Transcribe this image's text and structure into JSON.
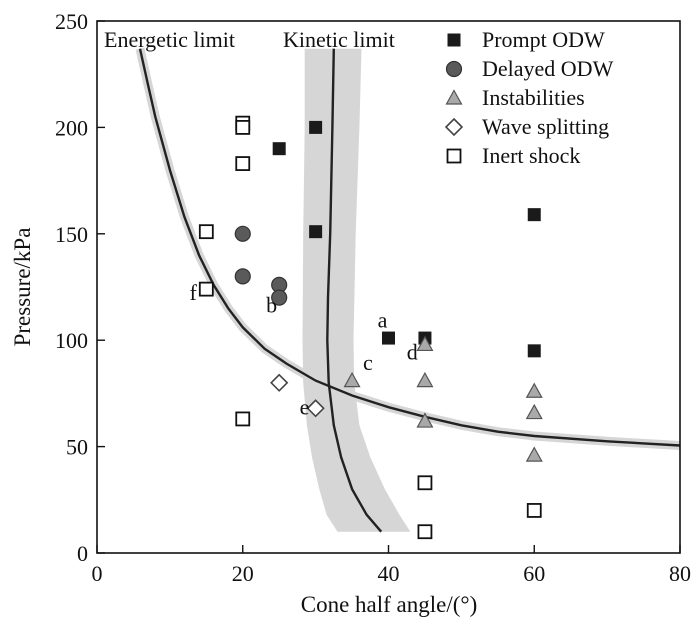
{
  "chart_data": {
    "type": "scatter",
    "xlabel": "Cone half angle/(°)",
    "ylabel": "Pressure/kPa",
    "xlim": [
      0,
      80
    ],
    "ylim": [
      0,
      250
    ],
    "xticks": [
      0,
      20,
      40,
      60,
      80
    ],
    "yticks": [
      0,
      50,
      100,
      150,
      200,
      250
    ],
    "legend_position": "top-right",
    "colors": {
      "dark_marker": "#1a1a1a",
      "delayed_marker": "#5a5a5a",
      "instability_marker": "#a9a9a9",
      "band": "#d6d6d6",
      "curve": "#222222"
    },
    "series": [
      {
        "name": "Prompt ODW",
        "marker": "square-filled",
        "points": [
          [
            25,
            190
          ],
          [
            30,
            200
          ],
          [
            30,
            151
          ],
          [
            40,
            101
          ],
          [
            45,
            101
          ],
          [
            60,
            159
          ],
          [
            60,
            95
          ]
        ]
      },
      {
        "name": "Delayed ODW",
        "marker": "circle-filled",
        "points": [
          [
            20,
            150
          ],
          [
            20,
            130
          ],
          [
            25,
            126
          ],
          [
            25,
            120
          ]
        ]
      },
      {
        "name": "Instabilities",
        "marker": "triangle-gray",
        "points": [
          [
            35,
            81
          ],
          [
            45,
            98
          ],
          [
            45,
            81
          ],
          [
            45,
            62
          ],
          [
            60,
            76
          ],
          [
            60,
            66
          ],
          [
            60,
            46
          ]
        ]
      },
      {
        "name": "Wave splitting",
        "marker": "diamond-open",
        "points": [
          [
            25,
            80
          ],
          [
            30,
            68
          ]
        ]
      },
      {
        "name": "Inert shock",
        "marker": "square-open",
        "points": [
          [
            20,
            202
          ],
          [
            20,
            200
          ],
          [
            20,
            183
          ],
          [
            15,
            151
          ],
          [
            15,
            124
          ],
          [
            20,
            63
          ],
          [
            45,
            33
          ],
          [
            45,
            10
          ],
          [
            60,
            20
          ]
        ]
      }
    ],
    "curves": [
      {
        "name": "Energetic limit",
        "label": "Energetic limit",
        "points": [
          [
            5.9,
            237
          ],
          [
            7,
            220
          ],
          [
            8,
            205
          ],
          [
            10,
            180
          ],
          [
            12,
            158
          ],
          [
            14,
            140
          ],
          [
            16,
            126
          ],
          [
            18,
            115
          ],
          [
            20,
            106
          ],
          [
            23,
            96
          ],
          [
            26,
            89
          ],
          [
            30,
            81
          ],
          [
            35,
            74
          ],
          [
            40,
            68.5
          ],
          [
            45,
            64
          ],
          [
            50,
            60
          ],
          [
            55,
            57
          ],
          [
            60,
            55
          ],
          [
            70,
            52.5
          ],
          [
            80,
            50.5
          ]
        ]
      },
      {
        "name": "Kinetic limit",
        "label": "Kinetic limit",
        "points": [
          [
            32.5,
            237
          ],
          [
            32.3,
            200
          ],
          [
            32,
            150
          ],
          [
            31.7,
            120
          ],
          [
            31.6,
            100
          ],
          [
            31.8,
            80
          ],
          [
            32.5,
            60
          ],
          [
            33.5,
            45
          ],
          [
            35,
            30
          ],
          [
            37,
            18
          ],
          [
            39,
            10
          ]
        ],
        "band_left": [
          [
            28.5,
            237
          ],
          [
            28.5,
            200
          ],
          [
            28.3,
            150
          ],
          [
            28.2,
            100
          ],
          [
            28.3,
            80
          ],
          [
            28.8,
            60
          ],
          [
            29.5,
            45
          ],
          [
            30.5,
            30
          ],
          [
            31.5,
            18
          ],
          [
            33,
            10
          ]
        ],
        "band_right": [
          [
            36.3,
            237
          ],
          [
            36,
            200
          ],
          [
            35.5,
            150
          ],
          [
            35.2,
            100
          ],
          [
            35.3,
            80
          ],
          [
            36,
            60
          ],
          [
            37.5,
            45
          ],
          [
            39.5,
            30
          ],
          [
            41.5,
            18
          ],
          [
            43,
            10
          ]
        ]
      }
    ],
    "annotations": [
      {
        "text": "a",
        "x": 38.5,
        "y": 106
      },
      {
        "text": "b",
        "x": 23.2,
        "y": 113
      },
      {
        "text": "c",
        "x": 36.5,
        "y": 86
      },
      {
        "text": "d",
        "x": 42.5,
        "y": 91
      },
      {
        "text": "e",
        "x": 27.8,
        "y": 65
      },
      {
        "text": "f",
        "x": 12.7,
        "y": 119
      }
    ]
  }
}
